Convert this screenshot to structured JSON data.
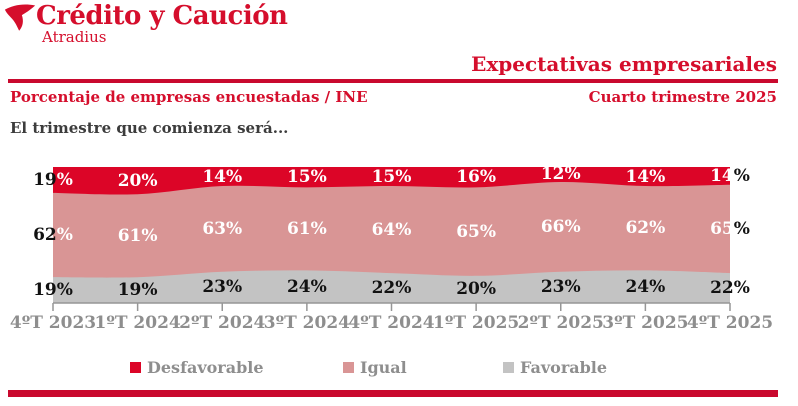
{
  "header": {
    "brand": "Crédito y Caución",
    "brand_sub": "Atradius",
    "title": "Expectativas empresariales",
    "subtitle_left": "Porcentaje de empresas encuestadas / INE",
    "subtitle_right": "Cuarto trimestre 2025"
  },
  "chart_intro": "El trimestre que comienza será...",
  "colors": {
    "brand_red": "#d50e2c",
    "rule_red": "#c9092e",
    "area_red": "#dc0527",
    "area_pink": "#d99595",
    "area_gray": "#c3c3c3",
    "axis_gray": "#969696",
    "axis_label_gray": "#8e8e8e",
    "label_dark": "#111111",
    "label_light": "#ffffff"
  },
  "chart_data": {
    "type": "area",
    "stacked": true,
    "percent_of_total": true,
    "title": "El trimestre que comienza será...",
    "categories": [
      "4ºT 2023",
      "1ºT 2024",
      "2ºT 2024",
      "3ºT 2024",
      "4ºT 2024",
      "1ºT 2025",
      "2ºT 2025",
      "3ºT 2025",
      "4ºT 2025"
    ],
    "series": [
      {
        "name": "Desfavorable",
        "color": "#dc0527",
        "label_color": "#ffffff",
        "values": [
          19,
          20,
          14,
          15,
          15,
          16,
          12,
          14,
          14
        ],
        "labels": [
          "19%",
          "20%",
          "14%",
          "15%",
          "15%",
          "16%",
          "12%",
          "14%",
          "14%"
        ]
      },
      {
        "name": "Igual",
        "color": "#d99595",
        "label_color": "#ffffff",
        "values": [
          62,
          61,
          63,
          61,
          64,
          65,
          66,
          62,
          65
        ],
        "labels": [
          "62%",
          "61%",
          "63%",
          "61%",
          "64%",
          "65%",
          "66%",
          "62%",
          "65%"
        ]
      },
      {
        "name": "Favorable",
        "color": "#c3c3c3",
        "label_color": "#111111",
        "values": [
          19,
          19,
          23,
          24,
          22,
          20,
          23,
          24,
          22
        ],
        "labels": [
          "19%",
          "19%",
          "23%",
          "24%",
          "22%",
          "20%",
          "23%",
          "24%",
          "22%"
        ]
      }
    ],
    "ylim": [
      0,
      100
    ],
    "grid": false,
    "legend_position": "bottom"
  }
}
